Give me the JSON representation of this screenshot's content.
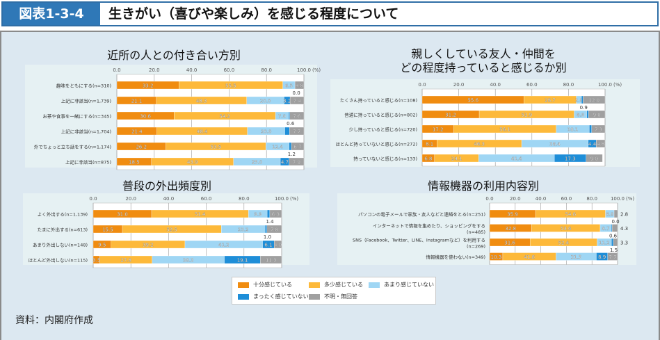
{
  "header": {
    "figure_number": "図表1-3-4",
    "title": "生きがい（喜びや楽しみ）を感じる程度について"
  },
  "colors": {
    "header_blue": "#2f78b7",
    "panel_bg": "#dce8f1",
    "series": [
      "#f08c10",
      "#fdb93a",
      "#9fd6f4",
      "#1e8ed8",
      "#a0a0a0"
    ]
  },
  "legend": {
    "items": [
      "十分感じている",
      "多少感じている",
      "あまり感じていない",
      "まったく感じていない",
      "不明・無回答"
    ]
  },
  "source": "資料：内閣府作成",
  "chart_data": [
    {
      "type": "bar",
      "orientation": "horizontal-stacked",
      "title": "近所の人との付き合い方別",
      "xlim": [
        0,
        100
      ],
      "xticks": [
        "0.0",
        "20.0",
        "40.0",
        "60.0",
        "80.0",
        "100.0"
      ],
      "unit_label": "(%)",
      "categories": [
        "趣味をともにする(n=310)",
        "上記に非該当(n=1,739)",
        "お茶や食事を一緒にする(n=345)",
        "上記に非該当(n=1,704)",
        "外でちょっと立ち話をする(n=1,174)",
        "上記に非該当(n=875)"
      ],
      "series": [
        {
          "name": "十分感じている",
          "values": [
            33.2,
            21.1,
            30.6,
            21.4,
            26.2,
            18.5
          ]
        },
        {
          "name": "多少感じている",
          "values": [
            55.5,
            48.3,
            54.2,
            48.4,
            53.5,
            43.9
          ]
        },
        {
          "name": "あまり感じていない",
          "values": [
            6.5,
            20.0,
            7.0,
            20.0,
            12.4,
            25.0
          ]
        },
        {
          "name": "まったく感じていない",
          "values": [
            0.0,
            3.2,
            0.6,
            2.5,
            1.2,
            4.7
          ]
        },
        {
          "name": "不明・無回答",
          "values": [
            4.8,
            7.4,
            7.6,
            7.7,
            6.7,
            7.9
          ]
        }
      ],
      "outside_labels": {
        "3": [
          "0.0",
          null,
          "0.6",
          null,
          "1.2",
          null
        ]
      }
    },
    {
      "type": "bar",
      "orientation": "horizontal-stacked",
      "title": "親しくしている友人・仲間を\nどの程度持っていると感じるか別",
      "xlim": [
        0,
        100
      ],
      "xticks": [
        "0.0",
        "20.0",
        "40.0",
        "60.0",
        "80.0",
        "100.0"
      ],
      "unit_label": "(%)",
      "categories": [
        "たくさん持っていると感じる(n=108)",
        "普通に持っていると感じる(n=802)",
        "少し持っていると感じる(n=720)",
        "ほとんど持っていないと感じる(n=272)",
        "持っていないと感じる(n=133)"
      ],
      "series": [
        {
          "name": "十分感じている",
          "values": [
            55.6,
            31.2,
            17.2,
            8.1,
            6.8
          ]
        },
        {
          "name": "多少感じている",
          "values": [
            28.7,
            51.9,
            56.1,
            46.3,
            24.1
          ]
        },
        {
          "name": "あまり感じていない",
          "values": [
            2.8,
            6.9,
            18.1,
            36.4,
            41.4
          ]
        },
        {
          "name": "まったく感じていない",
          "values": [
            0.9,
            1.0,
            1.3,
            4.4,
            17.3
          ]
        },
        {
          "name": "不明・無回答",
          "values": [
            12.0,
            9.0,
            7.3,
            4.8,
            9.0
          ]
        }
      ],
      "outside_labels": {
        "3": [
          "0.9",
          null,
          null,
          null,
          null
        ]
      }
    },
    {
      "type": "bar",
      "orientation": "horizontal-stacked",
      "title": "普段の外出頻度別",
      "xlim": [
        0,
        100
      ],
      "xticks": [
        "0.0",
        "20.0",
        "40.0",
        "60.0",
        "80.0",
        "100.0"
      ],
      "unit_label": "(%)",
      "categories": [
        "よく外出する(n=1,139)",
        "たまに外出する(n=613)",
        "あまり外出しない(n=148)",
        "ほとんど外出しない(n=115)"
      ],
      "series": [
        {
          "name": "十分感じている",
          "values": [
            31.0,
            15.5,
            9.5,
            3.5
          ]
        },
        {
          "name": "多少感じている",
          "values": [
            51.4,
            52.5,
            39.2,
            27.8
          ]
        },
        {
          "name": "あまり感じていない",
          "values": [
            9.9,
            23.2,
            41.2,
            38.3
          ]
        },
        {
          "name": "まったく感じていない",
          "values": [
            1.4,
            1.0,
            6.1,
            19.1
          ]
        },
        {
          "name": "不明・無回答",
          "values": [
            6.3,
            7.8,
            4.0,
            11.3
          ]
        }
      ],
      "outside_labels": {
        "3": [
          "1.4",
          "1.0",
          null,
          null
        ]
      }
    },
    {
      "type": "bar",
      "orientation": "horizontal-stacked",
      "title": "情報機器の利用内容別",
      "xlim": [
        0,
        100
      ],
      "xticks": [
        "0.0",
        "20.0",
        "40.0",
        "60.0",
        "80.0",
        "100.0"
      ],
      "unit_label": "(%)",
      "categories": [
        "パソコンの電子メールで家族・友人などと連絡をとる(n=251)",
        "インターネットで情報を集めたり、ショッピングをする\n(n=485)",
        "SNS（Facebook、Twitter、LINE、Instagramなど）を利用する\n(n=269)",
        "情報機器を使わない(n=349)"
      ],
      "series": [
        {
          "name": "十分感じている",
          "values": [
            35.9,
            32.8,
            31.6,
            10.3
          ]
        },
        {
          "name": "多少感じている",
          "values": [
            54.6,
            53.6,
            52.4,
            41.6
          ]
        },
        {
          "name": "あまり感じていない",
          "values": [
            6.8,
            8.7,
            11.2,
            31.5
          ]
        },
        {
          "name": "まったく感じていない",
          "values": [
            0.0,
            0.6,
            1.5,
            8.9
          ]
        },
        {
          "name": "不明・無回答",
          "values": [
            2.8,
            4.3,
            3.3,
            7.7
          ]
        }
      ],
      "outside_labels": {
        "3": [
          "0.0",
          "0.6",
          "1.5",
          null
        ],
        "4": [
          "2.8",
          "4.3",
          "3.3",
          null
        ]
      }
    }
  ]
}
